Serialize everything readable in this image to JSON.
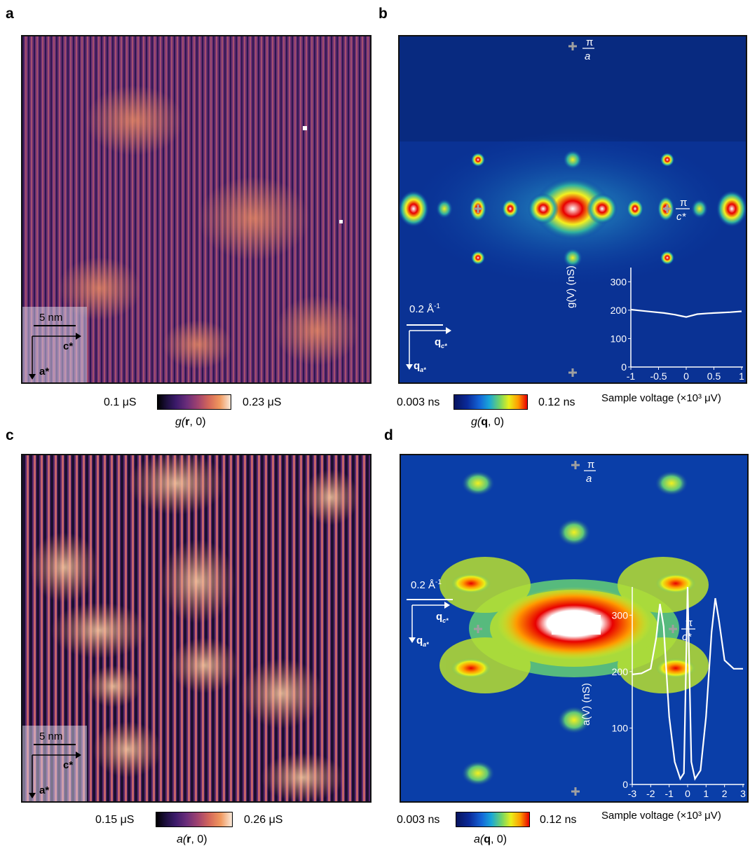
{
  "panels": {
    "a": {
      "label": "a",
      "scale_bar": "5 nm",
      "axis_c": "c*",
      "axis_a": "a*",
      "colorbar": {
        "min": "0.1 μS",
        "max": "0.23 μS",
        "title_pre": "g(",
        "title_bold": "r",
        "title_post": ", 0)"
      }
    },
    "b": {
      "label": "b",
      "scale_bar": "0.2 Å",
      "scale_sup": "-1",
      "q_c": "q",
      "q_c_sub": "c*",
      "q_a": "q",
      "q_a_sub": "a*",
      "pi_a_num": "π",
      "pi_a_den": "a",
      "pi_c_num": "π",
      "pi_c_den": "c*",
      "colorbar": {
        "min": "0.003 ns",
        "max": "0.12 ns",
        "title_pre": "g(",
        "title_bold": "q",
        "title_post": ", 0)"
      }
    },
    "c": {
      "label": "c",
      "scale_bar": "5 nm",
      "axis_c": "c*",
      "axis_a": "a*",
      "colorbar": {
        "min": "0.15 μS",
        "max": "0.26 μS",
        "title_pre": "a(",
        "title_bold": "r",
        "title_post": ", 0)"
      }
    },
    "d": {
      "label": "d",
      "scale_bar": "0.2 Å",
      "scale_sup": "-1",
      "q_c": "q",
      "q_c_sub": "c*",
      "q_a": "q",
      "q_a_sub": "a*",
      "pi_a_num": "π",
      "pi_a_den": "a",
      "pi_c_num": "π",
      "pi_c_den": "c*",
      "colorbar": {
        "min": "0.003 ns",
        "max": "0.12 ns",
        "title_pre": "a(",
        "title_bold": "q",
        "title_post": ", 0)"
      }
    }
  },
  "chart_data": [
    {
      "type": "line",
      "panel": "b-inset",
      "xlabel": "Sample voltage (×10³ μV)",
      "ylabel": "g(V) (nS)",
      "xlim": [
        -1,
        1
      ],
      "ylim": [
        0,
        350
      ],
      "xticks": [
        "-1",
        "-0.5",
        "0",
        "0.5",
        "1"
      ],
      "yticks": [
        "0",
        "100",
        "200",
        "300"
      ],
      "series": [
        {
          "x": [
            -1,
            -0.8,
            -0.6,
            -0.4,
            -0.2,
            -0.1,
            0,
            0.1,
            0.2,
            0.4,
            0.6,
            0.8,
            1
          ],
          "values": [
            202,
            198,
            194,
            190,
            184,
            180,
            176,
            181,
            186,
            189,
            191,
            193,
            196
          ]
        }
      ]
    },
    {
      "type": "line",
      "panel": "d-inset",
      "xlabel": "Sample voltage (×10³ μV)",
      "ylabel": "a(V) (nS)",
      "xlim": [
        -3,
        3
      ],
      "ylim": [
        0,
        350
      ],
      "xticks": [
        "-3",
        "-2",
        "-1",
        "0",
        "1",
        "2",
        "3"
      ],
      "yticks": [
        "0",
        "100",
        "200",
        "300"
      ],
      "series": [
        {
          "x": [
            -3,
            -2.5,
            -2,
            -1.7,
            -1.5,
            -1.3,
            -1,
            -0.7,
            -0.4,
            -0.2,
            0,
            0.2,
            0.4,
            0.7,
            1,
            1.3,
            1.5,
            1.7,
            2,
            2.5,
            3
          ],
          "values": [
            195,
            197,
            205,
            260,
            320,
            280,
            120,
            40,
            10,
            20,
            350,
            40,
            10,
            25,
            120,
            270,
            330,
            290,
            220,
            205,
            205
          ]
        }
      ]
    }
  ],
  "colors": {
    "real_map": "#7a3a78",
    "fft_bg": "#0a3aa8",
    "pi_marker": "#a0a0a0"
  }
}
